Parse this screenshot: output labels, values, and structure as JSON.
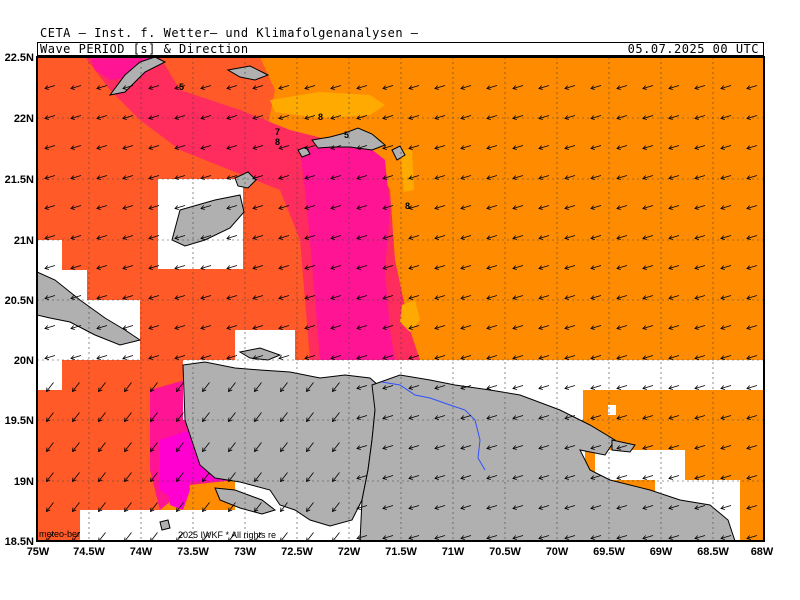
{
  "header": {
    "title": "CETA — Inst. f. Wetter— und Klimafolgenanalysen —",
    "parameter": "Wave PERIOD [s] & Direction",
    "datetime": "05.07.2025 00 UTC"
  },
  "map": {
    "lon_range": [
      -75,
      -68
    ],
    "lat_range": [
      18.5,
      22.5
    ],
    "lat_ticks": [
      "22.5N",
      "22N",
      "21.5N",
      "21N",
      "20.5N",
      "20N",
      "19.5N",
      "19N",
      "18.5N"
    ],
    "lon_ticks": [
      "75W",
      "74.5W",
      "74W",
      "73.5W",
      "73W",
      "72.5W",
      "72W",
      "71.5W",
      "71W",
      "70.5W",
      "70W",
      "69.5W",
      "69W",
      "68.5W",
      "68W"
    ],
    "contour_labels": [
      "5",
      "8",
      "7",
      "8",
      "5",
      "8"
    ],
    "colors": {
      "ocean_default": "#ff8c00",
      "period_7": "#ff5a28",
      "period_6": "#ff2c5e",
      "period_5": "#ff1493",
      "period_4": "#ff00d0",
      "period_9": "#ffaa00",
      "land": "#b0b0b0",
      "river": "#3050ff"
    },
    "arrow_direction": "westward, southwest in south"
  },
  "footer": {
    "watermark": "meteo-ber",
    "copyright": "2025 IWKF * All rights re"
  }
}
